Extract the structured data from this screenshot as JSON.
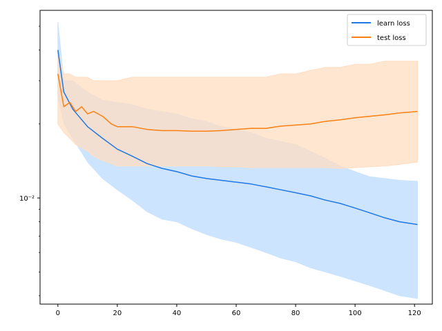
{
  "chart_data": {
    "type": "line",
    "title": "",
    "xlabel": "",
    "ylabel": "",
    "xlim": [
      -6,
      126
    ],
    "ylim": [
      0.0037,
      0.058
    ],
    "yscale": "log",
    "grid": false,
    "legend_position": "top-right",
    "x_ticks": [
      0,
      20,
      40,
      60,
      80,
      100,
      120
    ],
    "x_tick_labels": [
      "0",
      "20",
      "40",
      "60",
      "80",
      "100",
      "120"
    ],
    "y_ticks": [
      0.01
    ],
    "y_tick_labels": [
      "10⁻²"
    ],
    "series": [
      {
        "name": "learn loss",
        "color": "#1f77e4",
        "band_color": "#cce4fd",
        "x": [
          0,
          2,
          5,
          10,
          15,
          20,
          25,
          30,
          35,
          40,
          45,
          50,
          55,
          60,
          65,
          70,
          75,
          80,
          85,
          90,
          95,
          100,
          105,
          110,
          115,
          121
        ],
        "mean": [
          0.04,
          0.027,
          0.023,
          0.0195,
          0.0175,
          0.0158,
          0.0148,
          0.0138,
          0.0132,
          0.0128,
          0.0123,
          0.012,
          0.0118,
          0.0116,
          0.0114,
          0.0111,
          0.0108,
          0.0105,
          0.0102,
          0.0098,
          0.0095,
          0.0091,
          0.0087,
          0.0083,
          0.008,
          0.0078
        ],
        "upper": [
          0.052,
          0.03,
          0.03,
          0.027,
          0.025,
          0.0245,
          0.024,
          0.023,
          0.0225,
          0.022,
          0.021,
          0.0205,
          0.0195,
          0.019,
          0.0185,
          0.0175,
          0.017,
          0.0165,
          0.0155,
          0.0145,
          0.0135,
          0.0128,
          0.0122,
          0.012,
          0.0118,
          0.0117
        ],
        "lower": [
          0.026,
          0.02,
          0.0175,
          0.014,
          0.012,
          0.0108,
          0.0098,
          0.0088,
          0.0082,
          0.008,
          0.0075,
          0.0071,
          0.0068,
          0.0066,
          0.0063,
          0.006,
          0.0057,
          0.0055,
          0.0052,
          0.005,
          0.0048,
          0.0046,
          0.0044,
          0.0042,
          0.004,
          0.0039
        ]
      },
      {
        "name": "test loss",
        "color": "#ff7f0e",
        "band_color": "#ffdec2",
        "x": [
          0,
          2,
          4,
          6,
          8,
          10,
          12,
          15,
          18,
          20,
          25,
          30,
          35,
          40,
          45,
          50,
          55,
          60,
          65,
          70,
          75,
          80,
          85,
          90,
          95,
          100,
          105,
          110,
          115,
          121
        ],
        "mean": [
          0.032,
          0.0235,
          0.0245,
          0.0225,
          0.0235,
          0.022,
          0.0225,
          0.0215,
          0.02,
          0.0195,
          0.0195,
          0.019,
          0.0188,
          0.0188,
          0.0187,
          0.0187,
          0.0188,
          0.019,
          0.0192,
          0.0192,
          0.0196,
          0.0198,
          0.02,
          0.0205,
          0.0208,
          0.0212,
          0.0215,
          0.0218,
          0.0222,
          0.0225
        ],
        "upper": [
          0.04,
          0.032,
          0.032,
          0.031,
          0.031,
          0.031,
          0.03,
          0.03,
          0.03,
          0.03,
          0.031,
          0.031,
          0.031,
          0.031,
          0.031,
          0.031,
          0.031,
          0.031,
          0.031,
          0.031,
          0.032,
          0.032,
          0.033,
          0.034,
          0.034,
          0.035,
          0.035,
          0.036,
          0.036,
          0.036
        ],
        "lower": [
          0.02,
          0.0185,
          0.0175,
          0.0165,
          0.016,
          0.0155,
          0.0148,
          0.0142,
          0.0138,
          0.0135,
          0.0135,
          0.0135,
          0.0135,
          0.0135,
          0.0135,
          0.0135,
          0.0134,
          0.0134,
          0.0133,
          0.0133,
          0.0133,
          0.0133,
          0.0133,
          0.0133,
          0.0132,
          0.0133,
          0.0134,
          0.0135,
          0.0137,
          0.014
        ]
      }
    ]
  }
}
